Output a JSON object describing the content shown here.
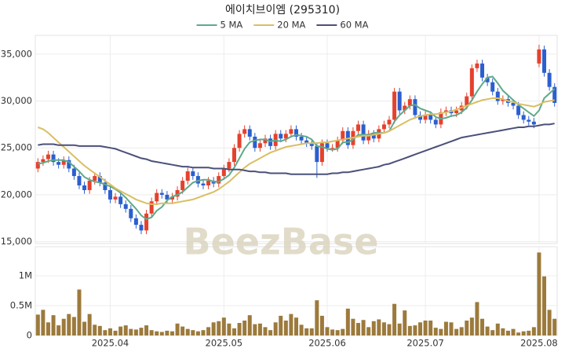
{
  "chart_data": {
    "type": "candlestick",
    "title": "에이치브이엠 (295310)",
    "watermark": "BeezBase",
    "categories": [
      null,
      null,
      null,
      null,
      null,
      null,
      null,
      null,
      null,
      null,
      null,
      null,
      null,
      null,
      "2025.04",
      null,
      null,
      null,
      null,
      null,
      null,
      null,
      null,
      null,
      null,
      null,
      null,
      null,
      null,
      null,
      null,
      null,
      null,
      null,
      null,
      null,
      "2025.05",
      null,
      null,
      null,
      null,
      null,
      null,
      null,
      null,
      null,
      null,
      null,
      null,
      null,
      null,
      null,
      null,
      null,
      null,
      null,
      "2025.06",
      null,
      null,
      null,
      null,
      null,
      null,
      null,
      null,
      null,
      null,
      null,
      null,
      null,
      null,
      null,
      null,
      null,
      null,
      "2025.07",
      null,
      null,
      null,
      null,
      null,
      null,
      null,
      null,
      null,
      null,
      null,
      null,
      null,
      null,
      null,
      null,
      null,
      null,
      null,
      null,
      null,
      "2025.08",
      null,
      null,
      null
    ],
    "open": [
      22800,
      23500,
      23800,
      24300,
      23500,
      23200,
      23700,
      22800,
      22000,
      21000,
      20500,
      21500,
      22000,
      21300,
      20500,
      19500,
      19800,
      19000,
      18500,
      17500,
      16800,
      16200,
      18000,
      19300,
      20200,
      20000,
      19500,
      19800,
      20500,
      21500,
      22500,
      22000,
      21200,
      21000,
      21500,
      21200,
      22000,
      22800,
      23500,
      25000,
      26500,
      27000,
      26200,
      25000,
      25500,
      26000,
      25200,
      26500,
      26000,
      26500,
      27000,
      26200,
      25800,
      25500,
      25200,
      23500,
      25500,
      25000,
      25000,
      25800,
      26800,
      25300,
      26800,
      27500,
      25800,
      26500,
      26000,
      27000,
      27500,
      28000,
      31000,
      29000,
      29500,
      30200,
      28500,
      28000,
      28500,
      28000,
      27500,
      28800,
      29000,
      28700,
      29000,
      29500,
      30500,
      33500,
      34000,
      32500,
      32000,
      31000,
      30000,
      30200,
      29800,
      29500,
      28500,
      28000,
      27800,
      34000,
      35500,
      33000,
      31500
    ],
    "high": [
      23900,
      24200,
      24700,
      24700,
      23900,
      24100,
      24100,
      23200,
      22400,
      21400,
      21900,
      22400,
      22400,
      21700,
      20900,
      20200,
      20200,
      19400,
      18900,
      17900,
      17200,
      18400,
      19700,
      20600,
      20600,
      20400,
      20200,
      20900,
      21900,
      22900,
      22900,
      22400,
      21600,
      21900,
      21900,
      22400,
      23200,
      23900,
      25400,
      26900,
      27400,
      27400,
      26600,
      25900,
      26400,
      26400,
      26900,
      26900,
      26900,
      27400,
      27400,
      26600,
      26200,
      25900,
      25600,
      25900,
      25900,
      25400,
      26200,
      27200,
      27200,
      27200,
      27900,
      27900,
      26900,
      26900,
      27400,
      27900,
      28400,
      31400,
      31400,
      29900,
      30600,
      30600,
      28900,
      28900,
      28900,
      28400,
      29200,
      29400,
      29400,
      29400,
      29900,
      30900,
      33900,
      34400,
      34400,
      32900,
      32400,
      31400,
      30600,
      30600,
      30200,
      29900,
      28900,
      28400,
      28200,
      36000,
      35900,
      33400,
      31900
    ],
    "low": [
      22400,
      23100,
      23400,
      23100,
      22800,
      22800,
      22400,
      21600,
      20600,
      20100,
      20100,
      21100,
      20900,
      20100,
      19100,
      19100,
      18600,
      18100,
      17100,
      16400,
      15800,
      15800,
      17600,
      18900,
      19600,
      19100,
      19100,
      19400,
      20100,
      21100,
      21600,
      20800,
      20600,
      20600,
      20800,
      20800,
      21600,
      22400,
      23100,
      24600,
      26100,
      25800,
      24600,
      24600,
      25100,
      24800,
      24800,
      25600,
      25600,
      26100,
      25800,
      25400,
      25100,
      24800,
      21800,
      23100,
      24600,
      24600,
      24600,
      25400,
      24900,
      24900,
      26400,
      25400,
      25400,
      25600,
      25600,
      26600,
      27100,
      27600,
      28600,
      28600,
      29100,
      28100,
      27600,
      27600,
      27600,
      27100,
      27100,
      28400,
      28300,
      28300,
      28600,
      29100,
      30100,
      33100,
      32100,
      31600,
      30600,
      29600,
      29600,
      29400,
      29100,
      28100,
      27600,
      27400,
      27100,
      33600,
      32600,
      31100,
      29400
    ],
    "close": [
      23500,
      23800,
      24300,
      23500,
      23200,
      23700,
      22800,
      22000,
      21000,
      20500,
      21500,
      22000,
      21300,
      20500,
      19500,
      19800,
      19000,
      18500,
      17500,
      16800,
      16200,
      18000,
      19300,
      20200,
      20000,
      19500,
      19800,
      20500,
      21500,
      22500,
      22000,
      21200,
      21000,
      21500,
      21200,
      22000,
      22800,
      23500,
      25000,
      26500,
      27000,
      26200,
      25000,
      25500,
      26000,
      25200,
      26500,
      26000,
      26500,
      27000,
      26200,
      25800,
      25500,
      25200,
      23500,
      25500,
      25000,
      25000,
      25800,
      26800,
      25300,
      26800,
      27500,
      25800,
      26500,
      26000,
      27000,
      27500,
      28000,
      31000,
      29000,
      29500,
      30200,
      28500,
      28000,
      28500,
      28000,
      27500,
      28800,
      29000,
      28700,
      29000,
      29500,
      30500,
      33500,
      34000,
      32500,
      32000,
      31000,
      30000,
      30200,
      29800,
      29500,
      28500,
      28000,
      27800,
      27500,
      35500,
      33000,
      31500,
      29800
    ],
    "up_color": "#e5412d",
    "down_color": "#2b5fcf",
    "ylim": [
      14800,
      37000
    ],
    "yticks": [
      {
        "value": 15000,
        "label": "15,000"
      },
      {
        "value": 20000,
        "label": "20,000"
      },
      {
        "value": 25000,
        "label": "25,000"
      },
      {
        "value": 30000,
        "label": "30,000"
      },
      {
        "value": 35000,
        "label": "35,000"
      }
    ],
    "grid": true,
    "series": [
      {
        "name": "5 MA",
        "color": "#5fa98a",
        "values": [
          23300,
          23400,
          23600,
          23700,
          23700,
          23700,
          23500,
          23000,
          22500,
          21900,
          21600,
          21400,
          21300,
          21100,
          20900,
          20600,
          20200,
          19700,
          19100,
          18500,
          17800,
          17400,
          17600,
          18300,
          18700,
          19400,
          19800,
          20000,
          20300,
          20800,
          21300,
          21500,
          21600,
          21600,
          21400,
          21400,
          21700,
          22100,
          22900,
          23900,
          24900,
          25600,
          25800,
          25900,
          25900,
          25700,
          25800,
          25700,
          25900,
          26200,
          26400,
          26300,
          26200,
          25900,
          25200,
          25100,
          24900,
          24800,
          24900,
          25600,
          25600,
          25900,
          26400,
          26400,
          26400,
          26600,
          26600,
          26600,
          26800,
          27800,
          28500,
          29000,
          29500,
          29600,
          29200,
          29000,
          28800,
          28300,
          28100,
          28200,
          28400,
          28500,
          28800,
          29300,
          30100,
          31000,
          31800,
          32500,
          32600,
          31900,
          31100,
          30600,
          30100,
          29600,
          29200,
          28800,
          28400,
          29000,
          30300,
          30800,
          31300
        ]
      },
      {
        "name": "20 MA",
        "color": "#d9bf63",
        "values": [
          27200,
          27000,
          26600,
          26100,
          25600,
          25100,
          24600,
          24100,
          23600,
          23100,
          22700,
          22300,
          21900,
          21500,
          21100,
          20700,
          20400,
          20100,
          19800,
          19500,
          19300,
          19100,
          19000,
          19000,
          19100,
          19100,
          19100,
          19200,
          19300,
          19400,
          19500,
          19700,
          19900,
          20100,
          20300,
          20600,
          21000,
          21400,
          21900,
          22400,
          22900,
          23300,
          23600,
          23900,
          24200,
          24500,
          24700,
          24900,
          25100,
          25200,
          25300,
          25400,
          25500,
          25500,
          25500,
          25600,
          25600,
          25700,
          25800,
          25900,
          26000,
          26100,
          26200,
          26300,
          26300,
          26400,
          26500,
          26600,
          26800,
          27100,
          27400,
          27700,
          28000,
          28200,
          28400,
          28500,
          28600,
          28600,
          28700,
          28800,
          28900,
          29100,
          29300,
          29500,
          29700,
          29900,
          30100,
          30200,
          30300,
          30300,
          30200,
          30000,
          29900,
          29700,
          29600,
          29500,
          29400,
          29600,
          29900,
          30000,
          30100
        ]
      },
      {
        "name": "60 MA",
        "color": "#4a5079",
        "values": [
          25300,
          25400,
          25400,
          25400,
          25300,
          25300,
          25300,
          25300,
          25200,
          25200,
          25200,
          25200,
          25200,
          25100,
          25000,
          24900,
          24700,
          24500,
          24300,
          24100,
          23900,
          23800,
          23600,
          23500,
          23400,
          23300,
          23200,
          23100,
          23000,
          23000,
          22900,
          22900,
          22900,
          22900,
          22800,
          22800,
          22800,
          22700,
          22700,
          22700,
          22600,
          22500,
          22500,
          22400,
          22400,
          22300,
          22300,
          22300,
          22300,
          22200,
          22200,
          22200,
          22200,
          22200,
          22200,
          22200,
          22200,
          22300,
          22300,
          22400,
          22400,
          22500,
          22600,
          22700,
          22800,
          22900,
          23000,
          23200,
          23300,
          23500,
          23700,
          23900,
          24100,
          24300,
          24500,
          24700,
          24900,
          25100,
          25300,
          25500,
          25700,
          25900,
          26100,
          26200,
          26300,
          26400,
          26500,
          26600,
          26700,
          26800,
          26900,
          27000,
          27100,
          27200,
          27200,
          27300,
          27300,
          27400,
          27500,
          27500,
          27600
        ]
      }
    ],
    "volume": {
      "color": "#9c7a3c",
      "ylim": [
        0,
        1487000
      ],
      "yticks": [
        0,
        {
          "value": 500000,
          "label": "0.5M"
        },
        {
          "value": 1000000,
          "label": "1M"
        }
      ],
      "values": [
        350000,
        430000,
        220000,
        340000,
        170000,
        280000,
        360000,
        310000,
        770000,
        230000,
        360000,
        180000,
        160000,
        90000,
        120000,
        80000,
        150000,
        170000,
        110000,
        100000,
        130000,
        170000,
        90000,
        70000,
        60000,
        80000,
        70000,
        200000,
        150000,
        110000,
        90000,
        70000,
        90000,
        140000,
        220000,
        240000,
        300000,
        200000,
        120000,
        210000,
        250000,
        340000,
        190000,
        200000,
        140000,
        90000,
        220000,
        330000,
        250000,
        360000,
        300000,
        180000,
        120000,
        120000,
        590000,
        330000,
        140000,
        100000,
        90000,
        110000,
        450000,
        280000,
        210000,
        260000,
        140000,
        240000,
        270000,
        220000,
        190000,
        530000,
        200000,
        420000,
        160000,
        170000,
        220000,
        250000,
        250000,
        130000,
        110000,
        230000,
        220000,
        110000,
        140000,
        250000,
        300000,
        560000,
        280000,
        150000,
        90000,
        200000,
        120000,
        80000,
        110000,
        50000,
        70000,
        80000,
        140000,
        1390000,
        990000,
        430000,
        280000
      ]
    }
  }
}
